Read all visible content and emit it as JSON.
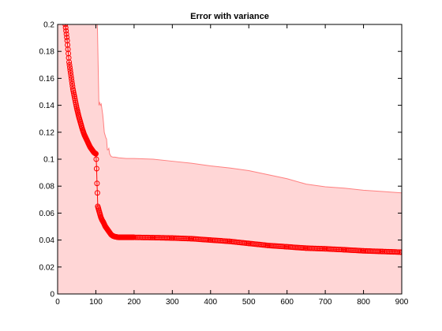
{
  "chart_data": {
    "type": "line",
    "title": "Error with variance",
    "xlabel": "",
    "ylabel": "",
    "xlim": [
      0,
      900
    ],
    "ylim": [
      0,
      0.2
    ],
    "xticks": [
      0,
      100,
      200,
      300,
      400,
      500,
      600,
      700,
      800,
      900
    ],
    "yticks": [
      0,
      0.02,
      0.04,
      0.06,
      0.08,
      0.1,
      0.12,
      0.14,
      0.16,
      0.18,
      0.2
    ],
    "grid": false,
    "legend": "none",
    "colors": {
      "line": "#ff0000",
      "band_fill": "#ffd6d6",
      "band_edge": "#ff8080"
    },
    "series": [
      {
        "style": "line-with-circle-markers",
        "x": [
          20,
          25,
          30,
          35,
          40,
          45,
          50,
          55,
          60,
          65,
          70,
          75,
          80,
          85,
          90,
          95,
          100,
          101,
          102,
          103,
          104,
          105,
          107,
          110,
          113,
          116,
          120,
          125,
          130,
          135,
          140,
          145,
          150,
          160,
          170,
          180,
          200,
          250,
          300,
          350,
          400,
          450,
          500,
          550,
          600,
          650,
          700,
          750,
          800,
          850,
          900
        ],
        "y": [
          0.2,
          0.188,
          0.172,
          0.162,
          0.152,
          0.145,
          0.138,
          0.132,
          0.127,
          0.122,
          0.118,
          0.115,
          0.112,
          0.109,
          0.107,
          0.105,
          0.104,
          0.1,
          0.093,
          0.082,
          0.075,
          0.065,
          0.063,
          0.06,
          0.057,
          0.055,
          0.053,
          0.05,
          0.048,
          0.046,
          0.044,
          0.043,
          0.0425,
          0.042,
          0.042,
          0.042,
          0.042,
          0.0418,
          0.0415,
          0.041,
          0.04,
          0.039,
          0.0375,
          0.036,
          0.035,
          0.034,
          0.0335,
          0.0328,
          0.032,
          0.0315,
          0.031
        ]
      }
    ],
    "band": {
      "x": [
        0,
        20,
        40,
        60,
        80,
        100,
        103,
        104,
        108,
        110,
        112,
        114,
        116,
        118,
        120,
        122,
        124,
        126,
        128,
        130,
        132,
        134,
        136,
        138,
        140,
        145,
        150,
        160,
        180,
        200,
        250,
        300,
        350,
        400,
        450,
        500,
        550,
        600,
        650,
        700,
        750,
        800,
        850,
        900
      ],
      "upper": [
        0.2,
        0.2,
        0.2,
        0.2,
        0.2,
        0.2,
        0.2,
        0.2,
        0.2,
        0.2,
        0.2,
        0.2,
        0.2,
        0.2,
        0.2,
        0.2,
        0.2,
        0.2,
        0.2,
        0.2,
        0.2,
        0.2,
        0.2,
        0.2,
        0.2,
        0.2,
        0.2,
        0.2,
        0.2,
        0.2,
        0.2,
        0.2,
        0.2,
        0.2,
        0.2,
        0.2,
        0.2,
        0.2,
        0.2,
        0.2,
        0.2,
        0.2,
        0.2,
        0.2
      ],
      "lower": [
        0.17,
        0.165,
        0.16,
        0.155,
        0.15,
        0.2,
        0.2,
        0.2,
        0.14,
        0.142,
        0.14,
        0.141,
        0.137,
        0.133,
        0.127,
        0.12,
        0.118,
        0.116,
        0.115,
        0.107,
        0.107,
        0.108,
        0.104,
        0.103,
        0.102,
        0.1015,
        0.1015,
        0.101,
        0.1005,
        0.1005,
        0.1,
        0.0985,
        0.097,
        0.095,
        0.0935,
        0.0915,
        0.0885,
        0.0855,
        0.0815,
        0.0795,
        0.0785,
        0.077,
        0.076,
        0.075
      ]
    }
  }
}
